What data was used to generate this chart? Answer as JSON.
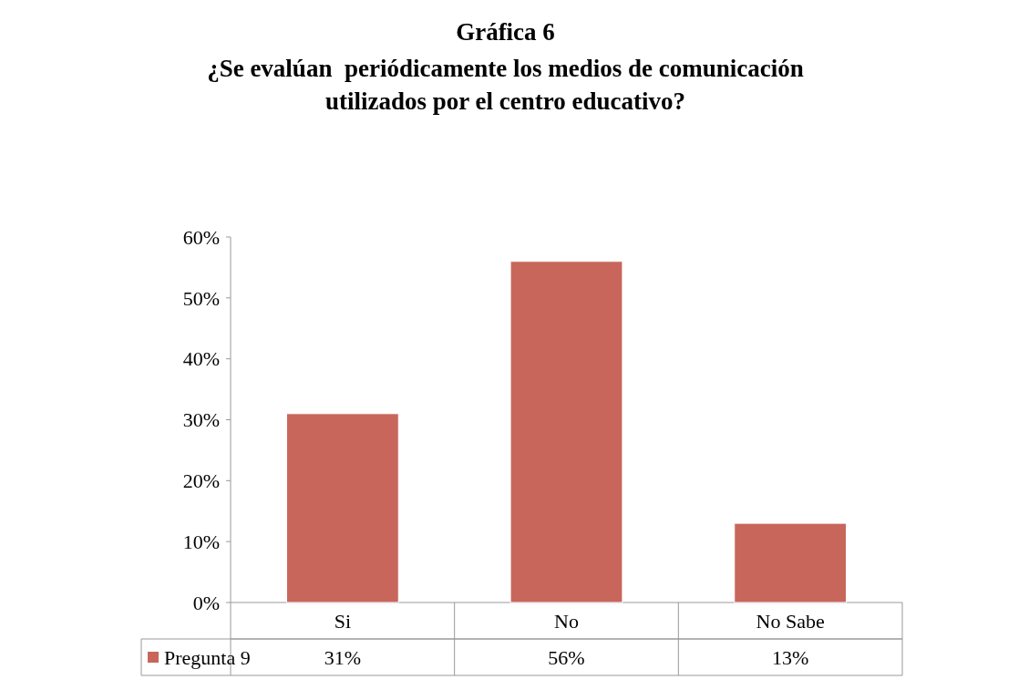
{
  "chart_data": {
    "type": "bar",
    "title": "Gráfica 6",
    "subtitle": "¿Se evalúan  periódicamente los medios de comunicación utilizados por el centro educativo?",
    "categories": [
      "Si",
      "No",
      "No Sabe"
    ],
    "series": [
      {
        "name": "Pregunta 9",
        "color": "#c8665c",
        "values": [
          31,
          56,
          13
        ],
        "value_labels": [
          "31%",
          "56%",
          "13%"
        ]
      }
    ],
    "ylim": [
      0,
      60
    ],
    "yticks": [
      {
        "value": 0,
        "label": "0%"
      },
      {
        "value": 10,
        "label": "10%"
      },
      {
        "value": 20,
        "label": "20%"
      },
      {
        "value": 30,
        "label": "30%"
      },
      {
        "value": 40,
        "label": "40%"
      },
      {
        "value": 50,
        "label": "50%"
      },
      {
        "value": 60,
        "label": "60%"
      }
    ],
    "legend": "bottom",
    "grid": false
  }
}
